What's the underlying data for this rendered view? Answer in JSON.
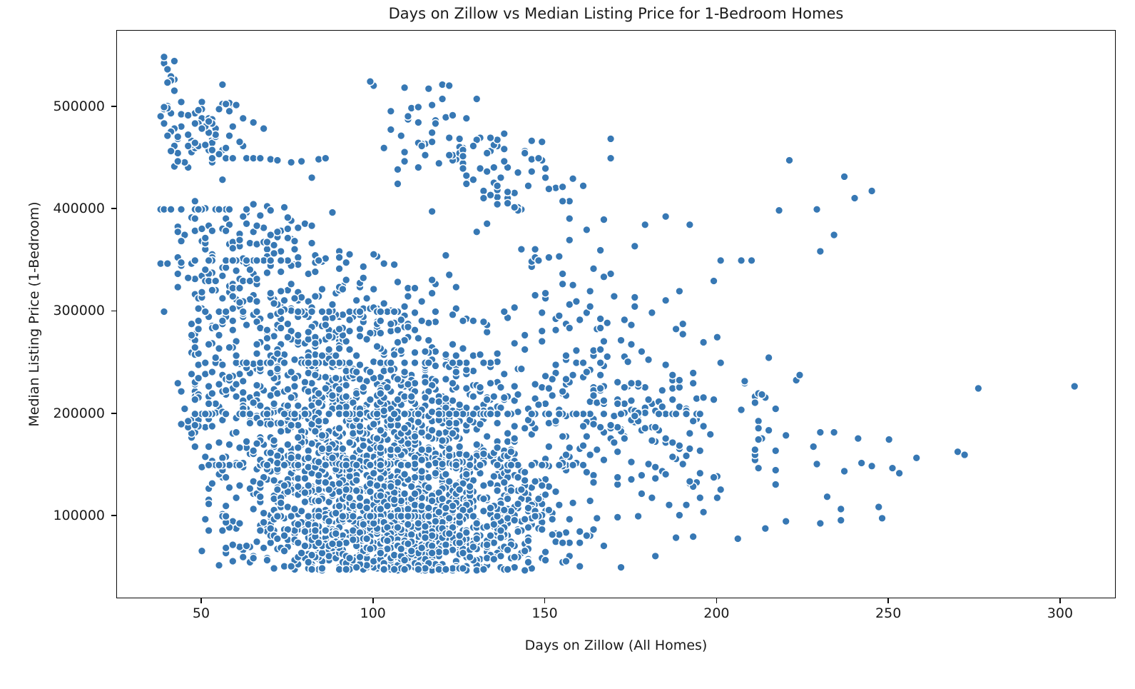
{
  "chart_data": {
    "type": "scatter",
    "title": "Days on Zillow vs Median Listing Price for 1-Bedroom Homes",
    "xlabel": "Days on Zillow (All Homes)",
    "ylabel": "Median Listing Price (1-Bedroom)",
    "xlim": [
      25.3,
      316.2
    ],
    "ylim": [
      19000,
      574700
    ],
    "x_ticks": [
      50,
      100,
      150,
      200,
      250,
      300
    ],
    "y_ticks": [
      100000,
      200000,
      300000,
      400000,
      500000
    ],
    "grid": false,
    "legend": "none",
    "marker": {
      "color": "#3778b4",
      "edge_color": "#ffffff",
      "radius": 5.4,
      "edge_width": 1.5
    },
    "seed": 7,
    "clusters": [
      {
        "n": 1350,
        "day": [
          108,
          23
        ],
        "price": [
          118000,
          40000
        ],
        "day_min": 50,
        "price_min": 47000,
        "slope": -250
      },
      {
        "n": 380,
        "day": [
          103,
          20
        ],
        "price": [
          72000,
          14000
        ],
        "day_min": 55,
        "price_min": 46000
      },
      {
        "n": 620,
        "day": [
          95,
          27
        ],
        "price": [
          212000,
          34000
        ],
        "day_min": 46,
        "price_min": 150000
      },
      {
        "n": 240,
        "day": [
          86,
          22
        ],
        "price": [
          298000,
          27000
        ],
        "day_min": 47
      },
      {
        "n": 120,
        "day": [
          64,
          12
        ],
        "price": [
          358000,
          26000
        ],
        "day_min": 42
      },
      {
        "n": 72,
        "day": [
          50,
          7
        ],
        "price": [
          470000,
          20000
        ],
        "day_min": 38,
        "price_max": 507000
      },
      {
        "n": 10,
        "day": [
          40,
          1.2
        ],
        "price": [
          515000,
          25000
        ],
        "day_min": 38,
        "price_min": 480000,
        "price_max": 549000
      },
      {
        "n": 115,
        "day": [
          131,
          16
        ],
        "price": [
          448000,
          30000
        ],
        "day_min": 100,
        "price_max": 521000,
        "slope": -1500
      },
      {
        "n": 150,
        "day": [
          172,
          18
        ],
        "price": [
          182000,
          42000
        ],
        "day_min": 140,
        "price_min": 60000,
        "slope": -300
      },
      {
        "n": 55,
        "day": [
          163,
          15
        ],
        "price": [
          256000,
          26000
        ],
        "day_min": 140
      },
      {
        "n": 30,
        "day": [
          160,
          12
        ],
        "price": [
          330000,
          24000
        ],
        "day_min": 145
      },
      {
        "n": 40,
        "day": [
          220,
          22
        ],
        "price": [
          168000,
          38000
        ],
        "day_min": 190,
        "day_max": 260,
        "price_min": 75000
      }
    ],
    "stripes": [
      {
        "price": 200000,
        "n": 70,
        "day": [
          115,
          45
        ],
        "day_min": 48,
        "day_max": 228
      },
      {
        "price": 150000,
        "n": 45,
        "day": [
          115,
          35
        ],
        "day_min": 52,
        "day_max": 215
      },
      {
        "price": 250000,
        "n": 28,
        "day": [
          95,
          30
        ],
        "day_min": 48,
        "day_max": 210
      },
      {
        "price": 300000,
        "n": 26,
        "day": [
          80,
          28
        ],
        "day_min": 39,
        "day_max": 185
      },
      {
        "price": 350000,
        "n": 14,
        "day": [
          65,
          14
        ],
        "day_min": 40,
        "day_max": 110
      },
      {
        "price": 400000,
        "n": 13,
        "day": [
          52,
          9
        ],
        "day_min": 37,
        "day_max": 76
      },
      {
        "price": 450000,
        "n": 6,
        "day": [
          60,
          5
        ],
        "day_min": 52,
        "day_max": 70
      },
      {
        "price": 100000,
        "n": 30,
        "day": [
          110,
          30
        ],
        "day_min": 55,
        "day_max": 210
      },
      {
        "price": 48000,
        "n": 12,
        "day": [
          115,
          15
        ],
        "day_min": 90,
        "day_max": 150
      }
    ],
    "outliers": [
      [
        39,
        549000
      ],
      [
        40,
        537000
      ],
      [
        40,
        524000
      ],
      [
        42,
        516000
      ],
      [
        39,
        500000
      ],
      [
        44,
        505000
      ],
      [
        56,
        522000
      ],
      [
        57,
        503000
      ],
      [
        60,
        502000
      ],
      [
        48,
        484000
      ],
      [
        52,
        486000
      ],
      [
        65,
        485000
      ],
      [
        70,
        449000
      ],
      [
        72,
        448000
      ],
      [
        76,
        446000
      ],
      [
        79,
        447000
      ],
      [
        84,
        449000
      ],
      [
        86,
        450000
      ],
      [
        99,
        525000
      ],
      [
        120,
        522000
      ],
      [
        122,
        521000
      ],
      [
        113,
        500000
      ],
      [
        169,
        469000
      ],
      [
        169,
        450000
      ],
      [
        221,
        448000
      ],
      [
        237,
        432000
      ],
      [
        245,
        418000
      ],
      [
        240,
        411000
      ],
      [
        218,
        399000
      ],
      [
        229,
        400000
      ],
      [
        234,
        375000
      ],
      [
        230,
        359000
      ],
      [
        192,
        385000
      ],
      [
        201,
        350000
      ],
      [
        207,
        350000
      ],
      [
        210,
        350000
      ],
      [
        199,
        330000
      ],
      [
        189,
        320000
      ],
      [
        181,
        299000
      ],
      [
        215,
        255000
      ],
      [
        223,
        233000
      ],
      [
        213,
        219000
      ],
      [
        211,
        211000
      ],
      [
        224,
        238000
      ],
      [
        201,
        250000
      ],
      [
        276,
        225000
      ],
      [
        304,
        227000
      ],
      [
        270,
        163000
      ],
      [
        272,
        160000
      ],
      [
        236,
        107000
      ],
      [
        247,
        109000
      ],
      [
        248,
        98000
      ],
      [
        214,
        88000
      ],
      [
        236,
        96000
      ],
      [
        43,
        230000
      ],
      [
        44,
        222000
      ],
      [
        45,
        205000
      ],
      [
        46,
        193000
      ],
      [
        44,
        190000
      ],
      [
        48,
        189000
      ],
      [
        38,
        347000
      ],
      [
        40,
        347000
      ],
      [
        44,
        348000
      ],
      [
        48,
        350000
      ],
      [
        62,
        60000
      ],
      [
        65,
        59000
      ]
    ]
  }
}
